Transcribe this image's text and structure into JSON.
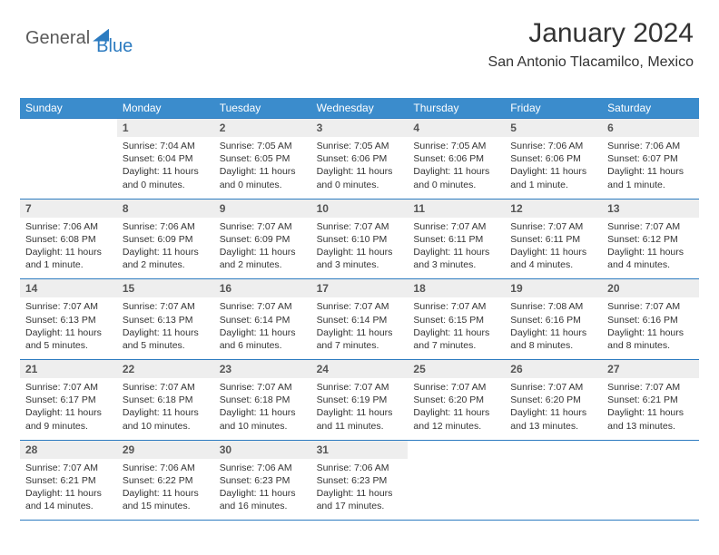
{
  "logo": {
    "part1": "General",
    "part2": "Blue"
  },
  "title": "January 2024",
  "location": "San Antonio Tlacamilco, Mexico",
  "colors": {
    "accent": "#2c7bc0",
    "header_bg": "#3b8ccc",
    "daynum_bg": "#eeeeee",
    "text": "#333333",
    "logo_gray": "#5a5a5a"
  },
  "weekdays": [
    "Sunday",
    "Monday",
    "Tuesday",
    "Wednesday",
    "Thursday",
    "Friday",
    "Saturday"
  ],
  "weeks": [
    [
      {
        "n": "",
        "sunrise": "",
        "sunset": "",
        "daylight": ""
      },
      {
        "n": "1",
        "sunrise": "7:04 AM",
        "sunset": "6:04 PM",
        "daylight": "11 hours and 0 minutes."
      },
      {
        "n": "2",
        "sunrise": "7:05 AM",
        "sunset": "6:05 PM",
        "daylight": "11 hours and 0 minutes."
      },
      {
        "n": "3",
        "sunrise": "7:05 AM",
        "sunset": "6:06 PM",
        "daylight": "11 hours and 0 minutes."
      },
      {
        "n": "4",
        "sunrise": "7:05 AM",
        "sunset": "6:06 PM",
        "daylight": "11 hours and 0 minutes."
      },
      {
        "n": "5",
        "sunrise": "7:06 AM",
        "sunset": "6:06 PM",
        "daylight": "11 hours and 1 minute."
      },
      {
        "n": "6",
        "sunrise": "7:06 AM",
        "sunset": "6:07 PM",
        "daylight": "11 hours and 1 minute."
      }
    ],
    [
      {
        "n": "7",
        "sunrise": "7:06 AM",
        "sunset": "6:08 PM",
        "daylight": "11 hours and 1 minute."
      },
      {
        "n": "8",
        "sunrise": "7:06 AM",
        "sunset": "6:09 PM",
        "daylight": "11 hours and 2 minutes."
      },
      {
        "n": "9",
        "sunrise": "7:07 AM",
        "sunset": "6:09 PM",
        "daylight": "11 hours and 2 minutes."
      },
      {
        "n": "10",
        "sunrise": "7:07 AM",
        "sunset": "6:10 PM",
        "daylight": "11 hours and 3 minutes."
      },
      {
        "n": "11",
        "sunrise": "7:07 AM",
        "sunset": "6:11 PM",
        "daylight": "11 hours and 3 minutes."
      },
      {
        "n": "12",
        "sunrise": "7:07 AM",
        "sunset": "6:11 PM",
        "daylight": "11 hours and 4 minutes."
      },
      {
        "n": "13",
        "sunrise": "7:07 AM",
        "sunset": "6:12 PM",
        "daylight": "11 hours and 4 minutes."
      }
    ],
    [
      {
        "n": "14",
        "sunrise": "7:07 AM",
        "sunset": "6:13 PM",
        "daylight": "11 hours and 5 minutes."
      },
      {
        "n": "15",
        "sunrise": "7:07 AM",
        "sunset": "6:13 PM",
        "daylight": "11 hours and 5 minutes."
      },
      {
        "n": "16",
        "sunrise": "7:07 AM",
        "sunset": "6:14 PM",
        "daylight": "11 hours and 6 minutes."
      },
      {
        "n": "17",
        "sunrise": "7:07 AM",
        "sunset": "6:14 PM",
        "daylight": "11 hours and 7 minutes."
      },
      {
        "n": "18",
        "sunrise": "7:07 AM",
        "sunset": "6:15 PM",
        "daylight": "11 hours and 7 minutes."
      },
      {
        "n": "19",
        "sunrise": "7:08 AM",
        "sunset": "6:16 PM",
        "daylight": "11 hours and 8 minutes."
      },
      {
        "n": "20",
        "sunrise": "7:07 AM",
        "sunset": "6:16 PM",
        "daylight": "11 hours and 8 minutes."
      }
    ],
    [
      {
        "n": "21",
        "sunrise": "7:07 AM",
        "sunset": "6:17 PM",
        "daylight": "11 hours and 9 minutes."
      },
      {
        "n": "22",
        "sunrise": "7:07 AM",
        "sunset": "6:18 PM",
        "daylight": "11 hours and 10 minutes."
      },
      {
        "n": "23",
        "sunrise": "7:07 AM",
        "sunset": "6:18 PM",
        "daylight": "11 hours and 10 minutes."
      },
      {
        "n": "24",
        "sunrise": "7:07 AM",
        "sunset": "6:19 PM",
        "daylight": "11 hours and 11 minutes."
      },
      {
        "n": "25",
        "sunrise": "7:07 AM",
        "sunset": "6:20 PM",
        "daylight": "11 hours and 12 minutes."
      },
      {
        "n": "26",
        "sunrise": "7:07 AM",
        "sunset": "6:20 PM",
        "daylight": "11 hours and 13 minutes."
      },
      {
        "n": "27",
        "sunrise": "7:07 AM",
        "sunset": "6:21 PM",
        "daylight": "11 hours and 13 minutes."
      }
    ],
    [
      {
        "n": "28",
        "sunrise": "7:07 AM",
        "sunset": "6:21 PM",
        "daylight": "11 hours and 14 minutes."
      },
      {
        "n": "29",
        "sunrise": "7:06 AM",
        "sunset": "6:22 PM",
        "daylight": "11 hours and 15 minutes."
      },
      {
        "n": "30",
        "sunrise": "7:06 AM",
        "sunset": "6:23 PM",
        "daylight": "11 hours and 16 minutes."
      },
      {
        "n": "31",
        "sunrise": "7:06 AM",
        "sunset": "6:23 PM",
        "daylight": "11 hours and 17 minutes."
      },
      {
        "n": "",
        "sunrise": "",
        "sunset": "",
        "daylight": ""
      },
      {
        "n": "",
        "sunrise": "",
        "sunset": "",
        "daylight": ""
      },
      {
        "n": "",
        "sunrise": "",
        "sunset": "",
        "daylight": ""
      }
    ]
  ],
  "labels": {
    "sunrise": "Sunrise:",
    "sunset": "Sunset:",
    "daylight": "Daylight:"
  }
}
